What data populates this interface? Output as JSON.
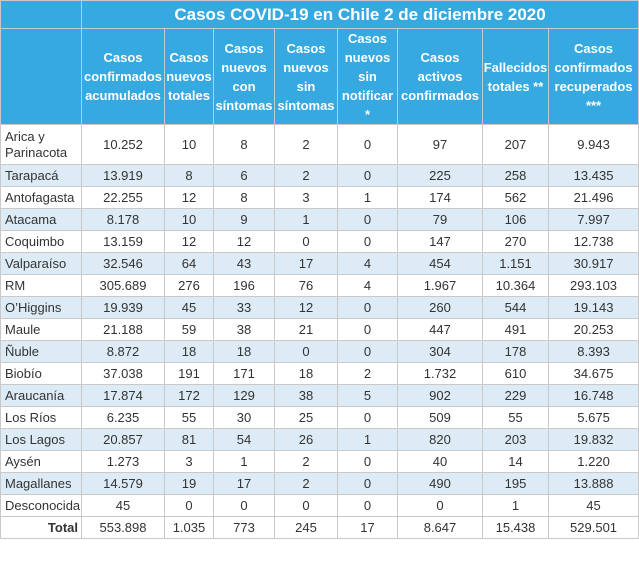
{
  "title": "Casos COVID-19 en Chile 2 de diciembre 2020",
  "columns": [
    "Casos confirmados acumulados",
    "Casos nuevos totales",
    "Casos nuevos con síntomas",
    "Casos nuevos sin síntomas",
    "Casos nuevos sin notificar *",
    "Casos activos confirmados",
    "Fallecidos totales **",
    "Casos confirmados recuperados ***"
  ],
  "rows": [
    {
      "region": "Arica y Parinacota",
      "values": [
        "10.252",
        "10",
        "8",
        "2",
        "0",
        "97",
        "207",
        "9.943"
      ]
    },
    {
      "region": "Tarapacá",
      "values": [
        "13.919",
        "8",
        "6",
        "2",
        "0",
        "225",
        "258",
        "13.435"
      ]
    },
    {
      "region": "Antofagasta",
      "values": [
        "22.255",
        "12",
        "8",
        "3",
        "1",
        "174",
        "562",
        "21.496"
      ]
    },
    {
      "region": "Atacama",
      "values": [
        "8.178",
        "10",
        "9",
        "1",
        "0",
        "79",
        "106",
        "7.997"
      ]
    },
    {
      "region": "Coquimbo",
      "values": [
        "13.159",
        "12",
        "12",
        "0",
        "0",
        "147",
        "270",
        "12.738"
      ]
    },
    {
      "region": "Valparaíso",
      "values": [
        "32.546",
        "64",
        "43",
        "17",
        "4",
        "454",
        "1.151",
        "30.917"
      ]
    },
    {
      "region": "RM",
      "values": [
        "305.689",
        "276",
        "196",
        "76",
        "4",
        "1.967",
        "10.364",
        "293.103"
      ]
    },
    {
      "region": "O’Higgins",
      "values": [
        "19.939",
        "45",
        "33",
        "12",
        "0",
        "260",
        "544",
        "19.143"
      ]
    },
    {
      "region": "Maule",
      "values": [
        "21.188",
        "59",
        "38",
        "21",
        "0",
        "447",
        "491",
        "20.253"
      ]
    },
    {
      "region": "Ñuble",
      "values": [
        "8.872",
        "18",
        "18",
        "0",
        "0",
        "304",
        "178",
        "8.393"
      ]
    },
    {
      "region": "Biobío",
      "values": [
        "37.038",
        "191",
        "171",
        "18",
        "2",
        "1.732",
        "610",
        "34.675"
      ]
    },
    {
      "region": "Araucanía",
      "values": [
        "17.874",
        "172",
        "129",
        "38",
        "5",
        "902",
        "229",
        "16.748"
      ]
    },
    {
      "region": "Los Ríos",
      "values": [
        "6.235",
        "55",
        "30",
        "25",
        "0",
        "509",
        "55",
        "5.675"
      ]
    },
    {
      "region": "Los Lagos",
      "values": [
        "20.857",
        "81",
        "54",
        "26",
        "1",
        "820",
        "203",
        "19.832"
      ]
    },
    {
      "region": "Aysén",
      "values": [
        "1.273",
        "3",
        "1",
        "2",
        "0",
        "40",
        "14",
        "1.220"
      ]
    },
    {
      "region": "Magallanes",
      "values": [
        "14.579",
        "19",
        "17",
        "2",
        "0",
        "490",
        "195",
        "13.888"
      ]
    },
    {
      "region": "Desconocida",
      "values": [
        "45",
        "0",
        "0",
        "0",
        "0",
        "0",
        "1",
        "45"
      ]
    }
  ],
  "total": {
    "label": "Total",
    "values": [
      "553.898",
      "1.035",
      "773",
      "245",
      "17",
      "8.647",
      "15.438",
      "529.501"
    ]
  }
}
